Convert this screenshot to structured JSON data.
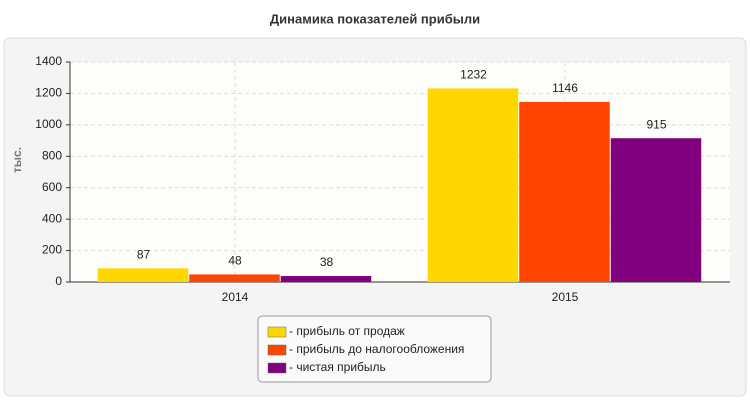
{
  "chart_data": {
    "type": "bar",
    "title": "Динамика показателей прибыли",
    "y_label": "тыс.",
    "categories": [
      "2014",
      "2015"
    ],
    "series": [
      {
        "name": "- прибыль от продаж",
        "color": "#ffd700",
        "values": [
          87,
          1232
        ]
      },
      {
        "name": "- прибыль до налогообложения",
        "color": "#ff4500",
        "values": [
          48,
          1146
        ]
      },
      {
        "name": "- чистая прибыль",
        "color": "#800080",
        "values": [
          38,
          915
        ]
      }
    ],
    "ylim": [
      0,
      1400
    ],
    "yticks": [
      0,
      200,
      400,
      600,
      800,
      1000,
      1200,
      1400
    ],
    "grid": true
  }
}
